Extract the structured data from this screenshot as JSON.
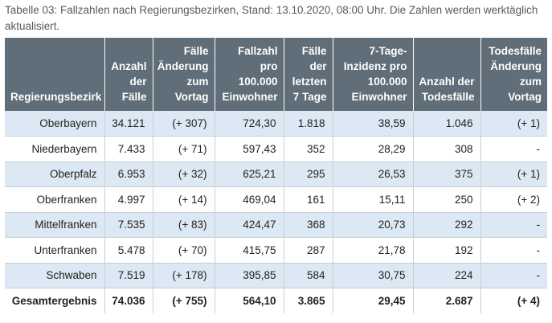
{
  "caption": "Tabelle 03: Fallzahlen nach Regierungsbezirken, Stand: 13.10.2020, 08:00 Uhr. Die Zahlen werden werktäglich aktualisiert.",
  "headers": [
    "Regierungsbezirk",
    "Anzahl der Fälle",
    "Fälle Änderung zum Vortag",
    "Fallzahl pro 100.000 Einwohner",
    "Fälle der letzten 7 Tage",
    "7-Tage-Inzidenz pro 100.000 Einwohner",
    "Anzahl der Todesfälle",
    "Todesfälle Änderung zum Vortag"
  ],
  "rows": [
    [
      "Oberbayern",
      "34.121",
      "(+ 307)",
      "724,30",
      "1.818",
      "38,59",
      "1.046",
      "(+ 1)"
    ],
    [
      "Niederbayern",
      "7.433",
      "(+ 71)",
      "597,43",
      "352",
      "28,29",
      "308",
      "-"
    ],
    [
      "Oberpfalz",
      "6.953",
      "(+ 32)",
      "625,21",
      "295",
      "26,53",
      "375",
      "(+ 1)"
    ],
    [
      "Oberfranken",
      "4.997",
      "(+ 14)",
      "469,04",
      "161",
      "15,11",
      "250",
      "(+ 2)"
    ],
    [
      "Mittelfranken",
      "7.535",
      "(+ 83)",
      "424,47",
      "368",
      "20,73",
      "292",
      "-"
    ],
    [
      "Unterfranken",
      "5.478",
      "(+ 70)",
      "415,75",
      "287",
      "21,78",
      "192",
      "-"
    ],
    [
      "Schwaben",
      "7.519",
      "(+ 178)",
      "395,85",
      "584",
      "30,75",
      "224",
      "-"
    ]
  ],
  "total": [
    "Gesamtergebnis",
    "74.036",
    "(+ 755)",
    "564,10",
    "3.865",
    "29,45",
    "2.687",
    "(+ 4)"
  ],
  "colors": {
    "header_bg": "#5f6e78",
    "row_shade": "#dce8f3"
  }
}
